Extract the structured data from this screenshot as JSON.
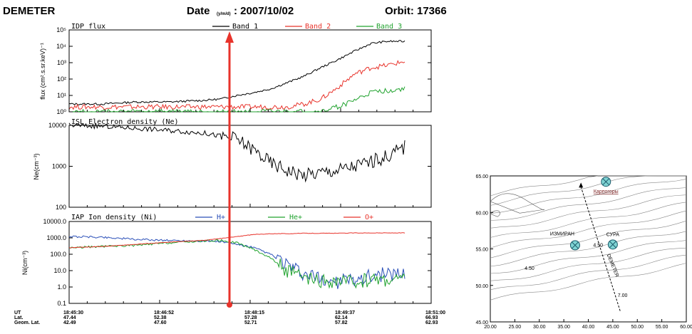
{
  "header": {
    "mission": "DEMETER",
    "date_label": "Date",
    "date_sub": "(y/m/d)",
    "date_value": ": 2007/10/02",
    "orbit": "Orbit: 17366"
  },
  "colors": {
    "band1": "#000000",
    "band2": "#e8332b",
    "band3": "#21a32f",
    "hplus": "#2a4fb8",
    "heplus": "#21a32f",
    "oplus": "#e8332b",
    "marker": "#e8332b",
    "station_fill": "#7fd3d3"
  },
  "chart_data": [
    {
      "type": "line",
      "title": "IDP flux",
      "ylabel": "flux (cm².s.sr.keV)⁻¹",
      "yscale": "log",
      "ylim": [
        1,
        100000
      ],
      "yticks": [
        "10⁰",
        "10¹",
        "10²",
        "10³",
        "10⁴",
        "10⁵"
      ],
      "legend": [
        "Band 1",
        "Band 2",
        "Band 3"
      ],
      "x": [
        0,
        0.1,
        0.2,
        0.3,
        0.4,
        0.45,
        0.5,
        0.55,
        0.6,
        0.65,
        0.7,
        0.75,
        0.8,
        0.85,
        0.9,
        0.95,
        1.0
      ],
      "series": [
        {
          "name": "Band 1",
          "values": [
            3,
            3,
            4,
            4,
            5,
            6,
            10,
            15,
            25,
            60,
            150,
            500,
            1500,
            5000,
            15000,
            20000,
            20000
          ]
        },
        {
          "name": "Band 2",
          "values": [
            2,
            2,
            2,
            2,
            2,
            2,
            2,
            2,
            2,
            2,
            3,
            6,
            30,
            200,
            500,
            700,
            1200
          ]
        },
        {
          "name": "Band 3",
          "values": [
            1,
            1,
            1,
            1,
            1,
            1,
            1,
            1,
            1,
            1,
            1,
            1,
            2,
            5,
            15,
            20,
            25
          ]
        }
      ]
    },
    {
      "type": "line",
      "title": "ISL Electron density (Ne)",
      "ylabel": "Ne(cm⁻³)",
      "yscale": "log",
      "ylim": [
        100,
        10000
      ],
      "yticks": [
        "100",
        "1000",
        "10000"
      ],
      "x": [
        0,
        0.1,
        0.2,
        0.3,
        0.4,
        0.45,
        0.5,
        0.55,
        0.6,
        0.65,
        0.7,
        0.75,
        0.8,
        0.85,
        0.9,
        0.95,
        1.0
      ],
      "series": [
        {
          "name": "Ne",
          "values": [
            10000,
            9500,
            8500,
            7500,
            6500,
            5500,
            4500,
            2500,
            1200,
            800,
            600,
            700,
            800,
            1000,
            1300,
            1800,
            3000
          ]
        }
      ]
    },
    {
      "type": "line",
      "title": "IAP Ion density (Ni)",
      "ylabel": "Ni(cm⁻³)",
      "yscale": "log",
      "ylim": [
        0.1,
        10000
      ],
      "yticks": [
        "0.1",
        "1.0",
        "10.0",
        "100.0",
        "1000.0",
        "10000.0"
      ],
      "legend": [
        "H+",
        "He+",
        "O+"
      ],
      "x": [
        0,
        0.1,
        0.2,
        0.3,
        0.4,
        0.45,
        0.5,
        0.55,
        0.6,
        0.65,
        0.7,
        0.75,
        0.8,
        0.85,
        0.9,
        0.95,
        1.0
      ],
      "series": [
        {
          "name": "H+",
          "values": [
            1200,
            1100,
            800,
            700,
            650,
            600,
            400,
            250,
            100,
            20,
            5,
            3,
            2,
            3,
            5,
            6,
            7
          ]
        },
        {
          "name": "He+",
          "values": [
            250,
            300,
            350,
            500,
            650,
            700,
            500,
            200,
            60,
            10,
            3,
            2,
            2,
            2,
            3,
            3,
            3
          ]
        },
        {
          "name": "O+",
          "values": [
            250,
            300,
            400,
            550,
            700,
            900,
            1200,
            1600,
            1800,
            1800,
            1900,
            1900,
            1900,
            2000,
            2000,
            2000,
            2000
          ]
        }
      ]
    }
  ],
  "xaxis": {
    "row_labels": [
      "UT",
      "Lat.",
      "Geom. Lat."
    ],
    "columns": [
      {
        "t": 0.0,
        "ut": "18:45:30",
        "lat": "47.44",
        "geom": "42.49"
      },
      {
        "t": 0.25,
        "ut": "18:46:52",
        "lat": "52.38",
        "geom": "47.60"
      },
      {
        "t": 0.5,
        "ut": "18:48:15",
        "lat": "57.28",
        "geom": "52.71"
      },
      {
        "t": 0.75,
        "ut": "18:49:37",
        "lat": "62.14",
        "geom": "57.82"
      },
      {
        "t": 1.0,
        "ut": "18:51:00",
        "lat": "66.93",
        "geom": "62.93"
      }
    ]
  },
  "map": {
    "xticks": [
      "20.00",
      "25.00",
      "30.00",
      "35.00",
      "40.00",
      "45.00",
      "50.00",
      "55.00",
      "60.00"
    ],
    "yticks": [
      "45.00",
      "50.00",
      "55.00",
      "60.00",
      "65.00"
    ],
    "stations": [
      {
        "name": "Карпогоры",
        "lon": 43.6,
        "lat": 64.2
      },
      {
        "name": "ИЗМИРАН",
        "lon": 37.3,
        "lat": 55.5
      },
      {
        "name": "СУРА",
        "lon": 45.0,
        "lat": 55.6
      }
    ],
    "contour_labels": [
      "4.50",
      "4.50",
      "7.00"
    ],
    "track_label": "DEMETER"
  }
}
